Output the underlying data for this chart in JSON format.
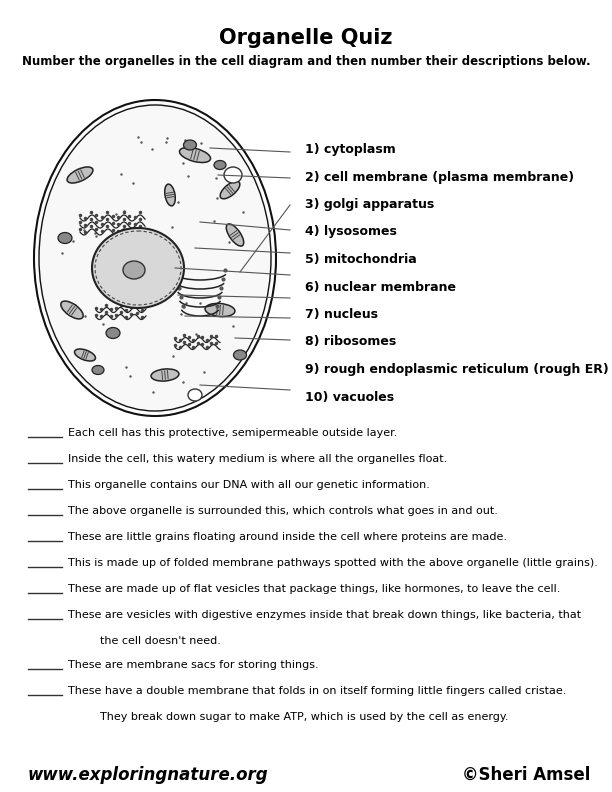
{
  "title": "Organelle Quiz",
  "subtitle": "Number the organelles in the cell diagram and then number their descriptions below.",
  "organelles": [
    "1) cytoplasm",
    "2) cell membrane (plasma membrane)",
    "3) golgi apparatus",
    "4) lysosomes",
    "5) mitochondria",
    "6) nuclear membrane",
    "7) nucleus",
    "8) ribosomes",
    "9) rough endoplasmic reticulum (rough ER)",
    "10) vacuoles"
  ],
  "descriptions": [
    {
      "text": "Each cell has this protective, semipermeable outside layer.",
      "continued": null
    },
    {
      "text": "Inside the cell, this watery medium is where all the organelles float.",
      "continued": null
    },
    {
      "text": "This organelle contains our DNA with all our genetic information.",
      "continued": null
    },
    {
      "text": "The above organelle is surrounded this, which controls what goes in and out.",
      "continued": null
    },
    {
      "text": "These are little grains floating around inside the cell where proteins are made.",
      "continued": null
    },
    {
      "text": "This is made up of folded membrane pathways spotted with the above organelle (little grains).",
      "continued": null
    },
    {
      "text": "These are made up of flat vesicles that package things, like hormones, to leave the cell.",
      "continued": null
    },
    {
      "text": "These are vesicles with digestive enzymes inside that break down things, like bacteria, that",
      "continued": "the cell doesn't need."
    },
    {
      "text": "These are membrane sacs for storing things.",
      "continued": null
    },
    {
      "text": "These have a double membrane that folds in on itself forming little fingers called cristae.",
      "continued": "They break down sugar to make ATP, which is used by the cell as energy."
    }
  ],
  "footer_left": "www.exploringnature.org",
  "footer_right": "©Sheri Amsel",
  "bg_color": "#ffffff",
  "text_color": "#000000"
}
